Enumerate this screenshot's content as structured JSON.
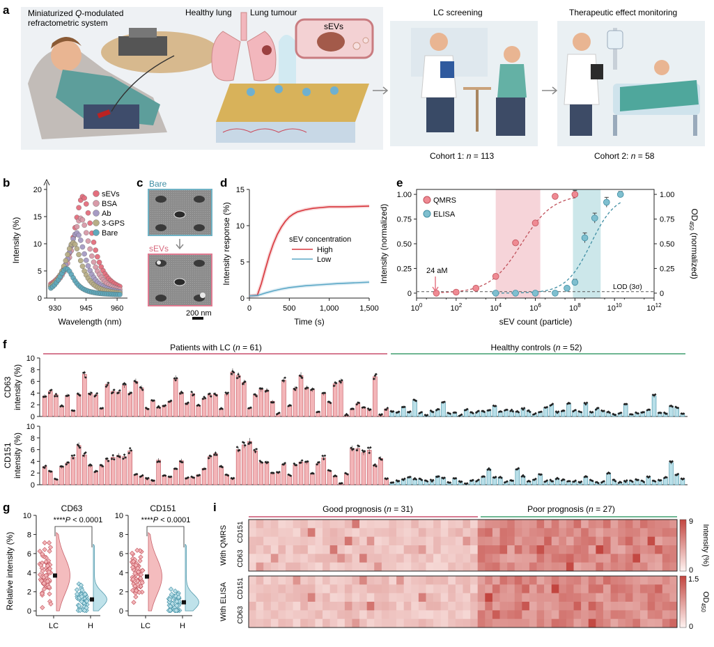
{
  "colors": {
    "lc": "#e8888c",
    "lc_edge": "#c0505a",
    "lc_fill": "#f3b5b8",
    "h": "#7fc0cf",
    "h_edge": "#3f8ea3",
    "h_fill": "#b9dfe8",
    "pink_band": "#f4c9cf",
    "teal_band": "#bfe1e5",
    "header_lc": "#c94f6d",
    "header_h": "#3e9e6e",
    "heat_low": "#fff3f1",
    "heat_high": "#c2453f"
  },
  "panels": {
    "a": {
      "letter": "a",
      "device_label": "Miniaturized Q-modulated\nrefractometric system",
      "healthy_lung": "Healthy lung",
      "lung_tumour": "Lung tumour",
      "sevs": "sEVs",
      "lc_screening": "LC screening",
      "therapy": "Therapeutic effect monitoring",
      "cohort1": "Cohort 1: ",
      "cohort1_n": "n",
      "cohort1_val": " = 113",
      "cohort2": "Cohort 2: ",
      "cohort2_n": "n",
      "cohort2_val": " = 58"
    },
    "b": {
      "letter": "b",
      "ylabel": "Intensity (%)",
      "xlabel": "Wavelength (nm)",
      "legend": [
        "sEVs",
        "BSA",
        "Ab",
        "3-GPS",
        "Bare"
      ]
    },
    "c": {
      "letter": "c",
      "label_top": "Bare",
      "label_bottom": "sEVs",
      "scalebar": "200 nm"
    },
    "d": {
      "letter": "d",
      "ylabel": "Intensity response (%)",
      "xlabel": "Time (s)",
      "legend_title": "sEV concentration",
      "legend": [
        "High",
        "Low"
      ]
    },
    "e": {
      "letter": "e",
      "ylabel": "Intensity (normalized)",
      "ylabel2_main": "OD",
      "ylabel2_sub": "450",
      "ylabel2_tail": " (normalized)",
      "xlabel": "sEV count (particle)",
      "legend": [
        "QMRS",
        "ELISA"
      ],
      "annotation": "24 aM",
      "lod": "LOD (3σ)"
    },
    "f": {
      "letter": "f",
      "header_lc": "Patients with LC (",
      "header_lc_n": "n",
      "header_lc_val": " = 61)",
      "header_h": "Healthy controls (",
      "header_h_n": "n",
      "header_h_val": " = 52)",
      "ylabel_top": [
        "CD63",
        "intensity (%)"
      ],
      "ylabel_bottom": [
        "CD151",
        "intensity (%)"
      ]
    },
    "g": {
      "letter": "g",
      "ylabel": "Relative intensity (%)",
      "title_left": "CD63",
      "title_right": "CD151",
      "sig": "****",
      "p_label": "P",
      "p_val": " < 0.0001",
      "xticks": [
        "LC",
        "H"
      ]
    },
    "i": {
      "letter": "i",
      "header_good": "Good prognosis (",
      "header_good_n": "n",
      "header_good_val": " = 31)",
      "header_poor": "Poor prognosis (",
      "header_poor_n": "n",
      "header_poor_val": " = 27)",
      "group_top": "With QMRS",
      "group_bottom": "With ELISA",
      "row_labels": [
        "CD151",
        "CD63"
      ],
      "cbar_top_label": "Intensity (%)",
      "cbar_top_ticks": [
        "9",
        "0"
      ],
      "cbar_bottom_main": "OD",
      "cbar_bottom_sub": "450",
      "cbar_bottom_ticks": [
        "1.5",
        "0"
      ]
    }
  },
  "chart_data": [
    {
      "panel": "b",
      "type": "scatter",
      "xlabel": "Wavelength (nm)",
      "ylabel": "Intensity (%)",
      "xlim": [
        926,
        965
      ],
      "ylim": [
        0,
        20
      ],
      "xticks": [
        930,
        945,
        960
      ],
      "yticks": [
        0,
        5,
        10,
        15,
        20
      ],
      "series": [
        {
          "name": "sEVs",
          "color": "#e36f7e",
          "peak": 943.5,
          "amp": 18.2,
          "width": 5.6
        },
        {
          "name": "BSA",
          "color": "#d89aa8",
          "peak": 942.5,
          "amp": 14.2,
          "width": 5.4
        },
        {
          "name": "Ab",
          "color": "#a69bc4",
          "peak": 940.5,
          "amp": 11.5,
          "width": 5.2
        },
        {
          "name": "3-GPS",
          "color": "#b7ad86",
          "peak": 938.8,
          "amp": 9.7,
          "width": 5.0
        },
        {
          "name": "Bare",
          "color": "#5fa9bc",
          "peak": 935.5,
          "amp": 4.9,
          "width": 4.6
        }
      ]
    },
    {
      "panel": "d",
      "type": "line",
      "xlabel": "Time (s)",
      "ylabel": "Intensity response (%)",
      "xlim": [
        0,
        1500
      ],
      "ylim": [
        0,
        15
      ],
      "xticks": [
        0,
        500,
        1000,
        1500
      ],
      "xtick_labels": [
        "0",
        "500",
        "1,000",
        "1,500"
      ],
      "yticks": [
        0,
        5,
        10,
        15
      ],
      "series": [
        {
          "name": "High",
          "color": "#d8353b",
          "x": [
            0,
            100,
            150,
            200,
            250,
            300,
            350,
            400,
            450,
            500,
            550,
            600,
            700,
            800,
            900,
            1000,
            1200,
            1500
          ],
          "y": [
            0.3,
            0.4,
            2.0,
            4.0,
            5.9,
            7.5,
            8.8,
            9.8,
            10.6,
            11.2,
            11.6,
            11.9,
            12.2,
            12.4,
            12.5,
            12.6,
            12.6,
            12.7
          ]
        },
        {
          "name": "Low",
          "color": "#5aa7c6",
          "x": [
            0,
            100,
            200,
            300,
            400,
            500,
            700,
            900,
            1100,
            1300,
            1500
          ],
          "y": [
            0.3,
            0.35,
            0.7,
            1.0,
            1.25,
            1.45,
            1.7,
            1.85,
            2.0,
            2.1,
            2.2
          ]
        }
      ]
    },
    {
      "panel": "e",
      "type": "scatter",
      "xlabel": "sEV count (particle)",
      "ylabel": "Intensity (normalized)",
      "ylabel_right": "OD450 (normalized)",
      "xscale": "log",
      "xlim_log10": [
        0,
        12
      ],
      "ylim": [
        -0.05,
        1.05
      ],
      "xtick_exponents": [
        0,
        2,
        4,
        6,
        8,
        10,
        12
      ],
      "yticks": [
        0,
        0.25,
        0.5,
        0.75,
        1
      ],
      "ytick_labels": [
        "0",
        "0.25",
        "0.50",
        "0.75",
        "1.00"
      ],
      "lod": 0.015,
      "bands_log10": [
        {
          "from": 4,
          "to": 6.25,
          "color": "pink"
        },
        {
          "from": 7.9,
          "to": 9.3,
          "color": "teal"
        }
      ],
      "series": [
        {
          "name": "QMRS",
          "color": "#ef8a93",
          "x_log10": [
            1,
            2,
            3,
            4,
            5,
            6,
            7,
            8
          ],
          "y": [
            0.0,
            0.01,
            0.05,
            0.17,
            0.51,
            0.71,
            0.98,
            1.0
          ],
          "err": [
            0.01,
            0.01,
            0.01,
            0.015,
            0.02,
            0.02,
            0.02,
            0.04
          ],
          "fit_mid": 5.3,
          "fit_slope": 1.25
        },
        {
          "name": "ELISA",
          "color": "#7fbfcf",
          "x_log10": [
            4,
            5,
            6,
            7,
            7.6,
            8,
            8.5,
            9,
            9.6,
            10.3
          ],
          "y": [
            0.0,
            0.0,
            0.0,
            0.0,
            0.05,
            0.11,
            0.56,
            0.76,
            0.92,
            1.0
          ],
          "err": [
            0.01,
            0.01,
            0.01,
            0.01,
            0.02,
            0.03,
            0.05,
            0.05,
            0.05,
            0.03
          ],
          "fit_mid": 8.8,
          "fit_slope": 1.6
        }
      ]
    },
    {
      "panel": "f",
      "type": "bar",
      "ylabel_top": "CD63 intensity (%)",
      "ylabel_bottom": "CD151 intensity (%)",
      "ylim": [
        0,
        10
      ],
      "yticks": [
        0,
        2,
        4,
        6,
        8,
        10
      ],
      "groups": [
        {
          "name": "Patients with LC",
          "n": 61
        },
        {
          "name": "Healthy controls",
          "n": 52
        }
      ],
      "cd63": [
        3.5,
        4.3,
        3.7,
        1.8,
        3.6,
        1.0,
        3.8,
        7.2,
        4.0,
        3.7,
        1.3,
        5.5,
        4.3,
        4.2,
        5.3,
        4.0,
        6.0,
        4.9,
        1.4,
        2.7,
        1.6,
        1.9,
        2.6,
        6.5,
        4.1,
        2.3,
        3.9,
        1.9,
        3.1,
        3.7,
        3.8,
        1.3,
        3.8,
        7.6,
        7.0,
        5.8,
        1.4,
        3.7,
        4.6,
        4.5,
        2.6,
        0.5,
        6.2,
        1.8,
        4.8,
        7.0,
        4.9,
        4.6,
        0.8,
        3.9,
        2.4,
        5.6,
        6.0,
        0.3,
        1.2,
        2.2,
        1.6,
        1.2,
        6.8,
        0.3,
        1.3
      ],
      "cd63_h": [
        0.9,
        0.8,
        1.7,
        0.8,
        2.8,
        0.6,
        0.2,
        0.9,
        1.2,
        2.4,
        0.5,
        0.6,
        0.2,
        1.2,
        0.6,
        0.8,
        0.8,
        1.1,
        1.8,
        0.8,
        1.1,
        1.0,
        0.8,
        1.3,
        0.9,
        0.4,
        0.8,
        1.5,
        2.0,
        0.7,
        0.9,
        2.2,
        1.0,
        0.8,
        2.2,
        0.7,
        1.3,
        0.9,
        0.7,
        0.4,
        0.6,
        2.0,
        0.4,
        0.6,
        0.8,
        1.1,
        3.5,
        0.7,
        0.6,
        1.8,
        1.5,
        0.4
      ],
      "cd151": [
        3.1,
        2.3,
        0.9,
        3.0,
        3.7,
        4.7,
        6.7,
        5.1,
        3.2,
        2.2,
        3.2,
        4.2,
        4.7,
        5.0,
        4.8,
        5.8,
        1.7,
        1.5,
        1.1,
        0.8,
        4.2,
        1.6,
        1.3,
        2.7,
        4.1,
        1.2,
        1.3,
        1.7,
        2.8,
        4.8,
        5.3,
        3.1,
        1.7,
        1.1,
        6.0,
        6.8,
        7.4,
        5.8,
        3.8,
        3.8,
        1.9,
        2.1,
        3.5,
        1.6,
        3.4,
        3.9,
        3.8,
        1.9,
        3.6,
        4.6,
        2.4,
        1.5,
        0.3,
        1.9,
        6.2,
        6.2,
        5.5,
        5.9,
        3.4,
        4.5,
        1.0
      ],
      "cd151_h": [
        0.4,
        0.7,
        0.9,
        1.2,
        1.0,
        0.9,
        0.6,
        0.7,
        1.5,
        1.2,
        0.4,
        1.0,
        0.6,
        0.2,
        0.8,
        0.7,
        1.3,
        2.7,
        1.3,
        1.3,
        0.5,
        0.8,
        2.7,
        1.5,
        0.6,
        0.9,
        1.8,
        0.6,
        0.7,
        1.1,
        0.8,
        0.6,
        0.6,
        0.4,
        1.3,
        0.7,
        0.4,
        0.5,
        2.0,
        0.7,
        0.4,
        0.6,
        0.6,
        0.9,
        0.6,
        1.3,
        0.6,
        0.8,
        1.2,
        3.8,
        1.8,
        1.0
      ]
    },
    {
      "panel": "g",
      "type": "scatter",
      "ylabel": "Relative intensity (%)",
      "ylim": [
        -0.5,
        10
      ],
      "yticks": [
        0,
        2,
        4,
        6,
        8,
        10
      ],
      "plots": [
        {
          "title": "CD63",
          "mean_lc": 3.7,
          "mean_h": 1.2,
          "sig": "****P < 0.0001"
        },
        {
          "title": "CD151",
          "mean_lc": 3.6,
          "mean_h": 0.9,
          "sig": "****P < 0.0001"
        }
      ]
    },
    {
      "panel": "i",
      "type": "heatmap",
      "rows_top": [
        "CD151",
        "CD63"
      ],
      "rows_bottom": [
        "CD151",
        "CD63"
      ],
      "columns": 58,
      "good_n": 31,
      "poor_n": 27,
      "colorbar_top": {
        "label": "Intensity (%)",
        "range": [
          0,
          9
        ]
      },
      "colorbar_bottom": {
        "label": "OD450",
        "range": [
          0,
          1.5
        ]
      }
    }
  ]
}
